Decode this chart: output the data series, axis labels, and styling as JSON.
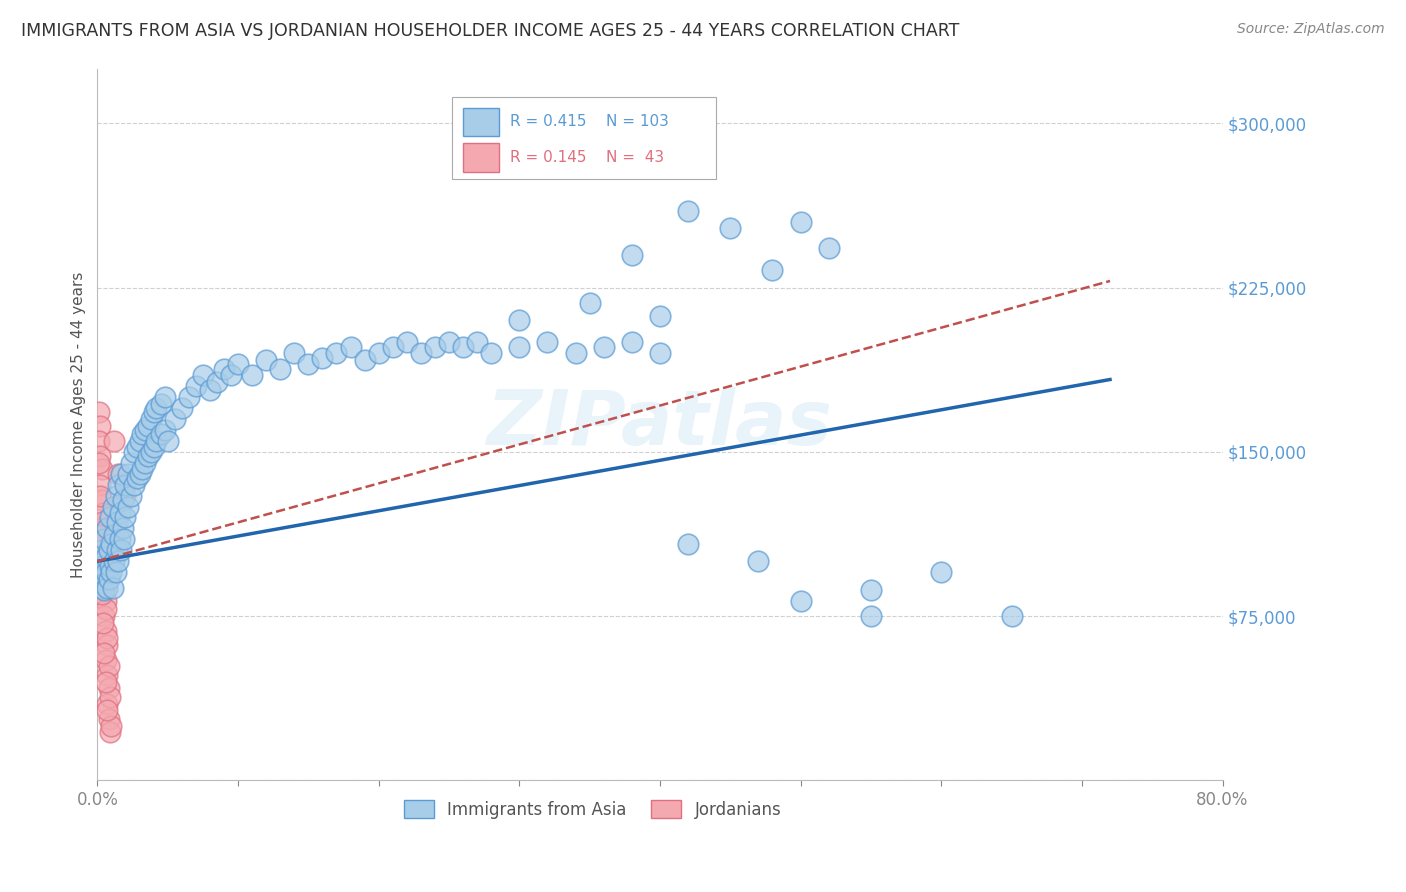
{
  "title": "IMMIGRANTS FROM ASIA VS JORDANIAN HOUSEHOLDER INCOME AGES 25 - 44 YEARS CORRELATION CHART",
  "source": "Source: ZipAtlas.com",
  "ylabel": "Householder Income Ages 25 - 44 years",
  "watermark": "ZIPatlas",
  "xlim": [
    0.0,
    0.8
  ],
  "ylim": [
    0,
    325000
  ],
  "yticks": [
    0,
    75000,
    150000,
    225000,
    300000
  ],
  "ytick_labels": [
    "",
    "$75,000",
    "$150,000",
    "$225,000",
    "$300,000"
  ],
  "xticks": [
    0.0,
    0.1,
    0.2,
    0.3,
    0.4,
    0.5,
    0.6,
    0.7,
    0.8
  ],
  "xtick_labels": [
    "0.0%",
    "",
    "",
    "",
    "",
    "",
    "",
    "",
    "80.0%"
  ],
  "blue_color": "#a8cde8",
  "pink_color": "#f4a8b0",
  "blue_edge": "#5b9bd5",
  "pink_edge": "#e07080",
  "trend_blue": "#2166ac",
  "trend_pink": "#c0504d",
  "title_color": "#333333",
  "axis_color": "#5b9bd5",
  "pink_legend_color": "#e07080",
  "grid_color": "#d0d0d0",
  "blue_scatter": [
    [
      0.001,
      95000
    ],
    [
      0.002,
      90000
    ],
    [
      0.002,
      100000
    ],
    [
      0.003,
      88000
    ],
    [
      0.003,
      105000
    ],
    [
      0.004,
      92000
    ],
    [
      0.004,
      98000
    ],
    [
      0.005,
      87000
    ],
    [
      0.005,
      110000
    ],
    [
      0.006,
      95000
    ],
    [
      0.006,
      102000
    ],
    [
      0.007,
      88000
    ],
    [
      0.007,
      115000
    ],
    [
      0.008,
      92000
    ],
    [
      0.008,
      105000
    ],
    [
      0.009,
      98000
    ],
    [
      0.009,
      120000
    ],
    [
      0.01,
      95000
    ],
    [
      0.01,
      108000
    ],
    [
      0.011,
      88000
    ],
    [
      0.011,
      125000
    ],
    [
      0.012,
      100000
    ],
    [
      0.012,
      112000
    ],
    [
      0.013,
      95000
    ],
    [
      0.013,
      130000
    ],
    [
      0.014,
      105000
    ],
    [
      0.014,
      118000
    ],
    [
      0.015,
      100000
    ],
    [
      0.015,
      135000
    ],
    [
      0.016,
      110000
    ],
    [
      0.016,
      122000
    ],
    [
      0.017,
      105000
    ],
    [
      0.017,
      140000
    ],
    [
      0.018,
      115000
    ],
    [
      0.018,
      128000
    ],
    [
      0.019,
      110000
    ],
    [
      0.02,
      120000
    ],
    [
      0.02,
      135000
    ],
    [
      0.022,
      125000
    ],
    [
      0.022,
      140000
    ],
    [
      0.024,
      130000
    ],
    [
      0.024,
      145000
    ],
    [
      0.026,
      135000
    ],
    [
      0.026,
      150000
    ],
    [
      0.028,
      138000
    ],
    [
      0.028,
      152000
    ],
    [
      0.03,
      140000
    ],
    [
      0.03,
      155000
    ],
    [
      0.032,
      142000
    ],
    [
      0.032,
      158000
    ],
    [
      0.034,
      145000
    ],
    [
      0.034,
      160000
    ],
    [
      0.036,
      148000
    ],
    [
      0.036,
      162000
    ],
    [
      0.038,
      150000
    ],
    [
      0.038,
      165000
    ],
    [
      0.04,
      152000
    ],
    [
      0.04,
      168000
    ],
    [
      0.042,
      155000
    ],
    [
      0.042,
      170000
    ],
    [
      0.045,
      158000
    ],
    [
      0.045,
      172000
    ],
    [
      0.048,
      160000
    ],
    [
      0.048,
      175000
    ],
    [
      0.05,
      155000
    ],
    [
      0.055,
      165000
    ],
    [
      0.06,
      170000
    ],
    [
      0.065,
      175000
    ],
    [
      0.07,
      180000
    ],
    [
      0.075,
      185000
    ],
    [
      0.08,
      178000
    ],
    [
      0.085,
      182000
    ],
    [
      0.09,
      188000
    ],
    [
      0.095,
      185000
    ],
    [
      0.1,
      190000
    ],
    [
      0.11,
      185000
    ],
    [
      0.12,
      192000
    ],
    [
      0.13,
      188000
    ],
    [
      0.14,
      195000
    ],
    [
      0.15,
      190000
    ],
    [
      0.16,
      193000
    ],
    [
      0.17,
      195000
    ],
    [
      0.18,
      198000
    ],
    [
      0.19,
      192000
    ],
    [
      0.2,
      195000
    ],
    [
      0.21,
      198000
    ],
    [
      0.22,
      200000
    ],
    [
      0.23,
      195000
    ],
    [
      0.24,
      198000
    ],
    [
      0.25,
      200000
    ],
    [
      0.26,
      198000
    ],
    [
      0.27,
      200000
    ],
    [
      0.28,
      195000
    ],
    [
      0.3,
      198000
    ],
    [
      0.32,
      200000
    ],
    [
      0.34,
      195000
    ],
    [
      0.36,
      198000
    ],
    [
      0.38,
      200000
    ],
    [
      0.4,
      195000
    ],
    [
      0.38,
      240000
    ],
    [
      0.42,
      260000
    ],
    [
      0.45,
      252000
    ],
    [
      0.48,
      233000
    ],
    [
      0.5,
      255000
    ],
    [
      0.52,
      243000
    ],
    [
      0.3,
      210000
    ],
    [
      0.35,
      218000
    ],
    [
      0.4,
      212000
    ],
    [
      0.55,
      87000
    ],
    [
      0.6,
      95000
    ],
    [
      0.65,
      75000
    ],
    [
      0.5,
      82000
    ],
    [
      0.55,
      75000
    ],
    [
      0.42,
      108000
    ],
    [
      0.47,
      100000
    ]
  ],
  "pink_scatter": [
    [
      0.001,
      168000
    ],
    [
      0.002,
      162000
    ],
    [
      0.001,
      155000
    ],
    [
      0.002,
      148000
    ],
    [
      0.003,
      142000
    ],
    [
      0.002,
      135000
    ],
    [
      0.003,
      128000
    ],
    [
      0.004,
      122000
    ],
    [
      0.003,
      115000
    ],
    [
      0.004,
      108000
    ],
    [
      0.005,
      102000
    ],
    [
      0.004,
      95000
    ],
    [
      0.005,
      88000
    ],
    [
      0.006,
      82000
    ],
    [
      0.005,
      75000
    ],
    [
      0.006,
      68000
    ],
    [
      0.007,
      62000
    ],
    [
      0.006,
      55000
    ],
    [
      0.007,
      48000
    ],
    [
      0.008,
      42000
    ],
    [
      0.007,
      35000
    ],
    [
      0.008,
      28000
    ],
    [
      0.009,
      22000
    ],
    [
      0.001,
      145000
    ],
    [
      0.002,
      130000
    ],
    [
      0.003,
      118000
    ],
    [
      0.004,
      105000
    ],
    [
      0.005,
      92000
    ],
    [
      0.006,
      78000
    ],
    [
      0.007,
      65000
    ],
    [
      0.008,
      52000
    ],
    [
      0.009,
      38000
    ],
    [
      0.01,
      25000
    ],
    [
      0.012,
      155000
    ],
    [
      0.015,
      140000
    ],
    [
      0.02,
      130000
    ],
    [
      0.001,
      112000
    ],
    [
      0.002,
      98000
    ],
    [
      0.003,
      85000
    ],
    [
      0.004,
      72000
    ],
    [
      0.005,
      58000
    ],
    [
      0.006,
      45000
    ],
    [
      0.007,
      32000
    ]
  ],
  "blue_trendline": [
    0.0,
    0.72,
    100000,
    183000
  ],
  "pink_trendline": [
    0.0,
    0.72,
    100000,
    228000
  ]
}
